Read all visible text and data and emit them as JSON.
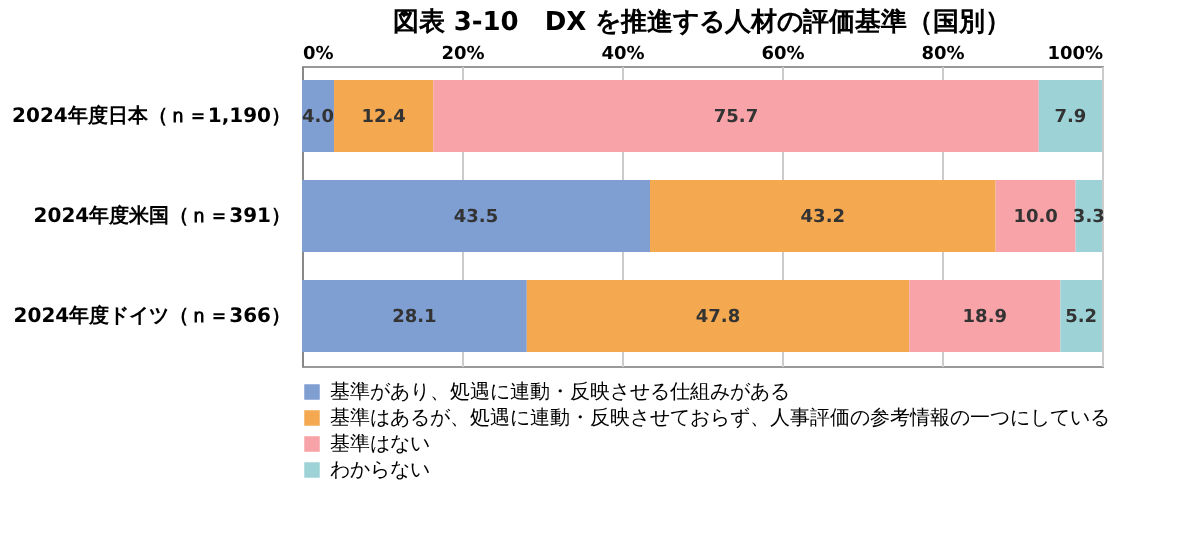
{
  "chart_data": {
    "type": "bar",
    "orientation": "horizontal",
    "stacked": true,
    "title": "図表 3-10　DX を推進する人材の評価基準（国別）",
    "categories": [
      "2024年度日本（ｎ＝1,190）",
      "2024年度米国（ｎ＝391）",
      "2024年度ドイツ（ｎ＝366）"
    ],
    "series": [
      {
        "name": "基準があり、処遇に連動・反映させる仕組みがある",
        "color": "#7f9fd3",
        "values": [
          4.0,
          43.5,
          28.1
        ],
        "value_labels": [
          "4.0",
          "43.5",
          "28.1"
        ]
      },
      {
        "name": "基準はあるが、処遇に連動・反映させておらず、人事評価の参考情報の一つにしている",
        "color": "#f4a950",
        "values": [
          12.4,
          43.2,
          47.8
        ],
        "value_labels": [
          "12.4",
          "43.2",
          "47.8"
        ]
      },
      {
        "name": "基準はない",
        "color": "#f7a3a8",
        "values": [
          75.7,
          10.0,
          18.9
        ],
        "value_labels": [
          "75.7",
          "10.0",
          "18.9"
        ]
      },
      {
        "name": "わからない",
        "color": "#9dd3d7",
        "values": [
          7.9,
          3.3,
          5.2
        ],
        "value_labels": [
          "7.9",
          "3.3",
          "5.2"
        ]
      }
    ],
    "xlim": [
      0,
      100
    ],
    "xticks": [
      {
        "value": 0,
        "label": "0%"
      },
      {
        "value": 20,
        "label": "20%"
      },
      {
        "value": 40,
        "label": "40%"
      },
      {
        "value": 60,
        "label": "60%"
      },
      {
        "value": 80,
        "label": "80%"
      },
      {
        "value": 100,
        "label": "100%"
      }
    ],
    "grid": "x",
    "legend": "bottom left"
  }
}
